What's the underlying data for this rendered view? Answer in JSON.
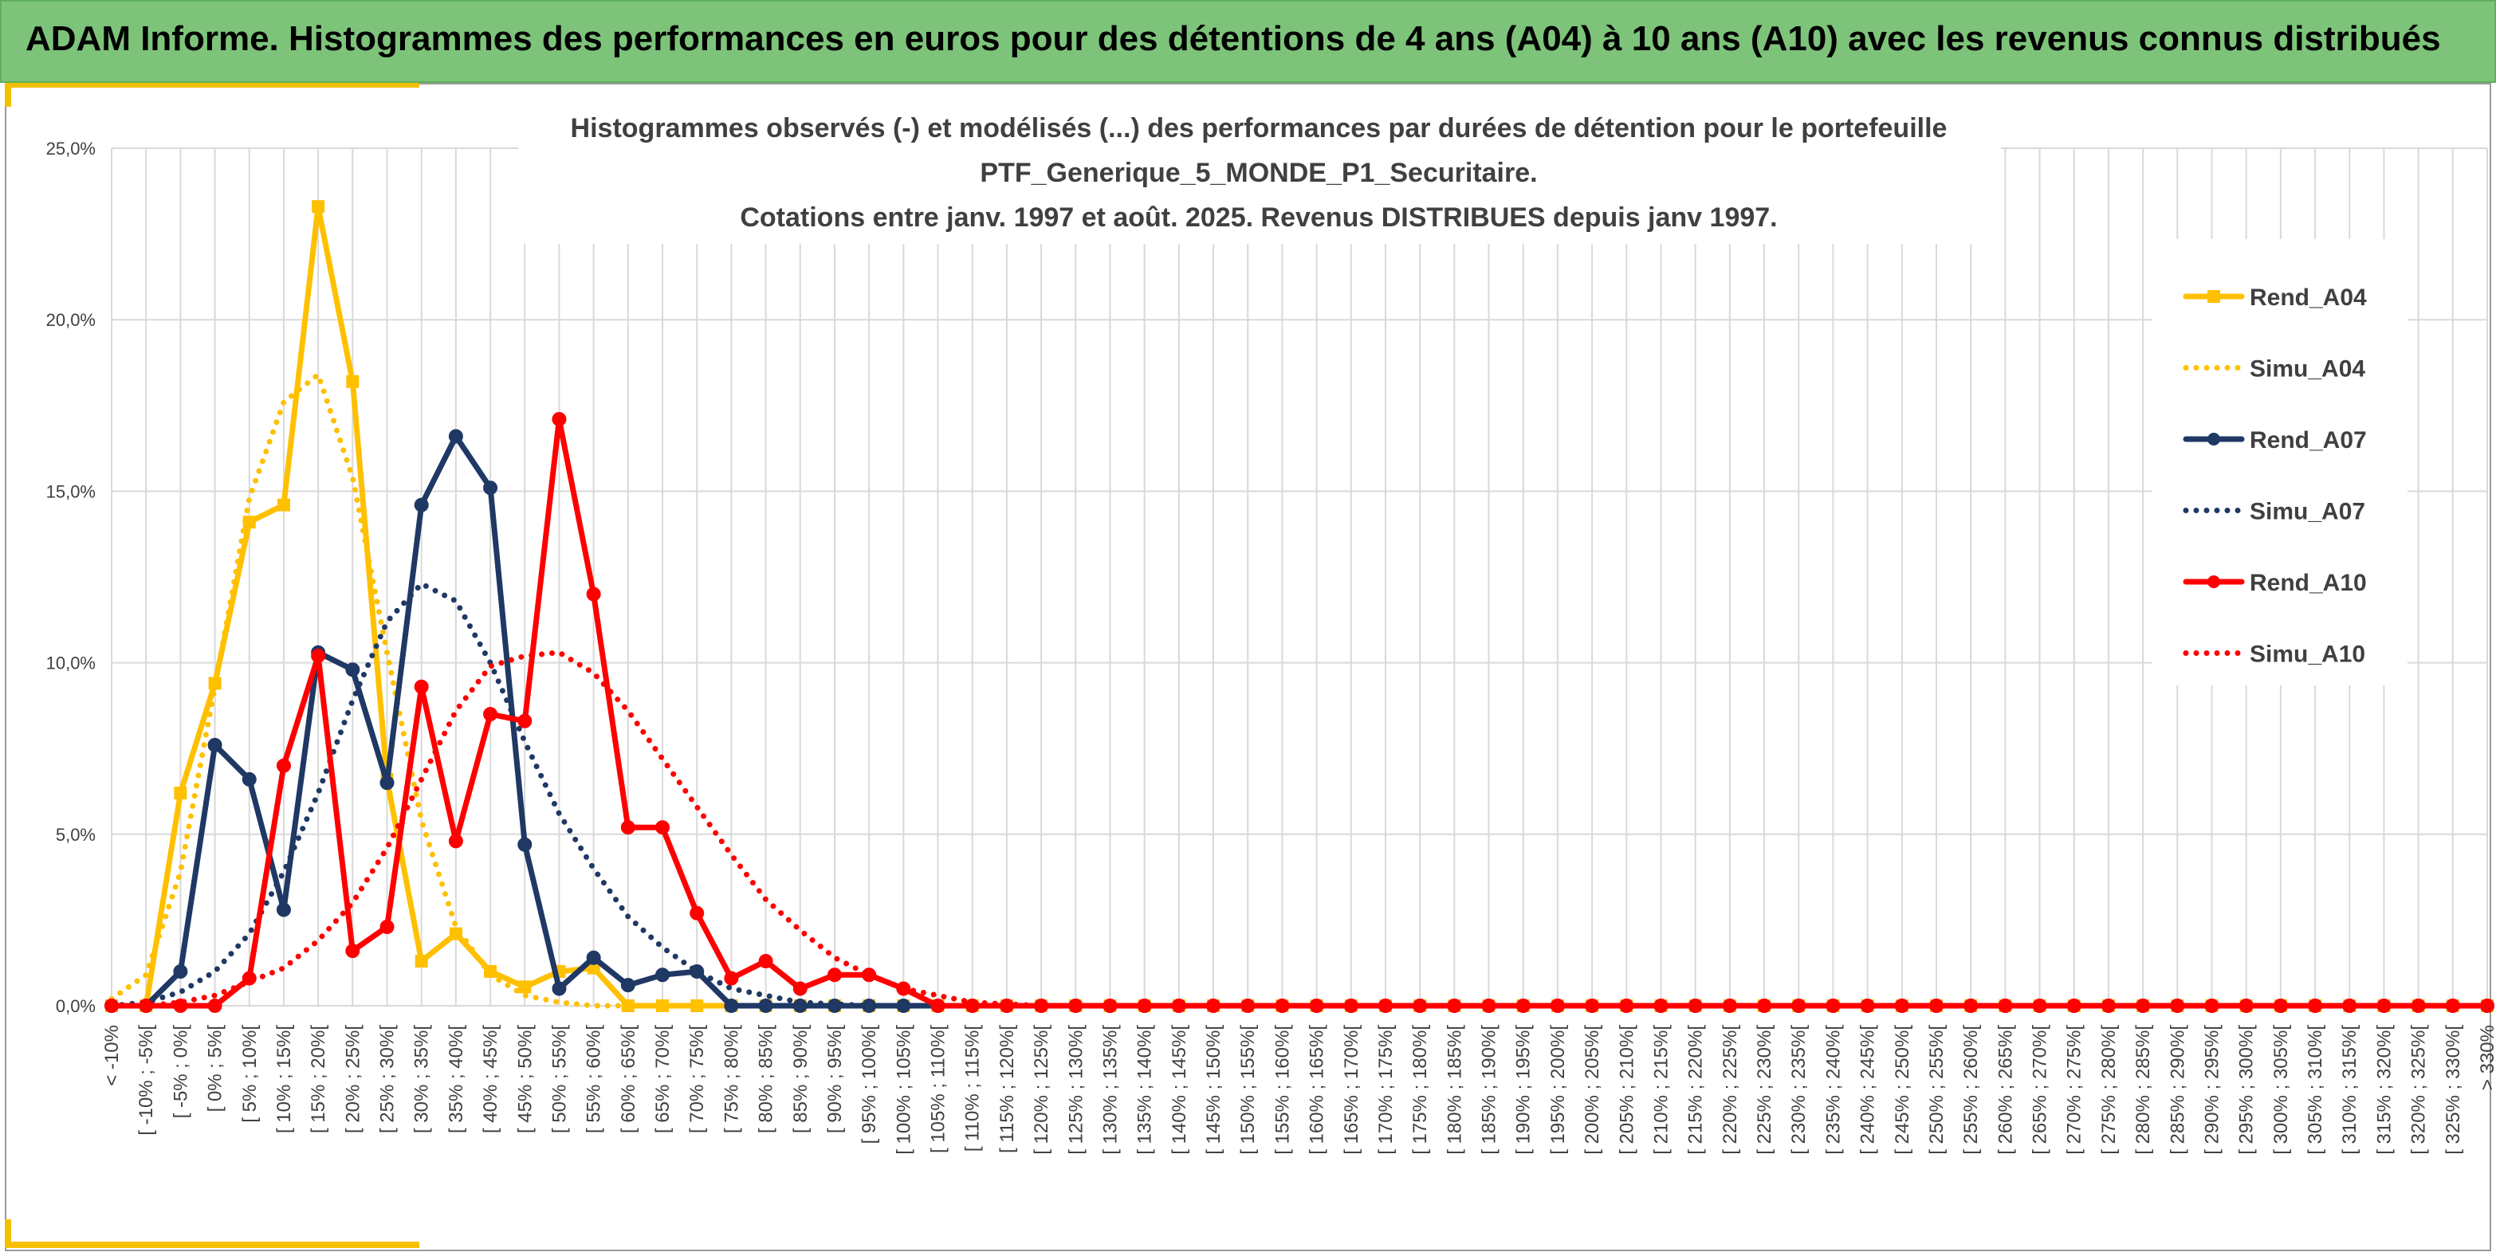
{
  "header": {
    "title": "ADAM Informe. Histogrammes des performances en euros pour des détentions de 4 ans (A04) à 10 ans (A10) avec les revenus connus distribués"
  },
  "colors": {
    "banner": "#7dc47a",
    "accent": "#f4c000",
    "yellow": "#ffc000",
    "navy": "#1f3864",
    "red": "#ff0000",
    "grid": "#d9d9d9"
  },
  "chart_data": {
    "type": "line",
    "title": [
      "Histogrammes observés (-) et modélisés (...) des performances par durées de détention pour le portefeuille",
      "PTF_Generique_5_MONDE_P1_Securitaire.",
      "Cotations entre janv. 1997 et août. 2025. Revenus DISTRIBUES depuis janv 1997."
    ],
    "ylim": [
      0,
      25
    ],
    "yticks": [
      "0,0%",
      "5,0%",
      "10,0%",
      "15,0%",
      "20,0%",
      "25,0%"
    ],
    "grid": true,
    "legend_position": "right",
    "categories": [
      "< -10%",
      "[ -10% ; -5%[",
      "[ -5% ; 0%[",
      "[ 0% ; 5%[",
      "[ 5% ; 10%[",
      "[ 10% ; 15%[",
      "[ 15% ; 20%[",
      "[ 20% ; 25%[",
      "[ 25% ; 30%[",
      "[ 30% ; 35%[",
      "[ 35% ; 40%[",
      "[ 40% ; 45%[",
      "[ 45% ; 50%[",
      "[ 50% ; 55%[",
      "[ 55% ; 60%[",
      "[ 60% ; 65%[",
      "[ 65% ; 70%[",
      "[ 70% ; 75%[",
      "[ 75% ; 80%[",
      "[ 80% ; 85%[",
      "[ 85% ; 90%[",
      "[ 90% ; 95%[",
      "[ 95% ; 100%[",
      "[ 100% ; 105%[",
      "[ 105% ; 110%[",
      "[ 110% ; 115%[",
      "[ 115% ; 120%[",
      "[ 120% ; 125%[",
      "[ 125% ; 130%[",
      "[ 130% ; 135%[",
      "[ 135% ; 140%[",
      "[ 140% ; 145%[",
      "[ 145% ; 150%[",
      "[ 150% ; 155%[",
      "[ 155% ; 160%[",
      "[ 160% ; 165%[",
      "[ 165% ; 170%[",
      "[ 170% ; 175%[",
      "[ 175% ; 180%[",
      "[ 180% ; 185%[",
      "[ 185% ; 190%[",
      "[ 190% ; 195%[",
      "[ 195% ; 200%[",
      "[ 200% ; 205%[",
      "[ 205% ; 210%[",
      "[ 210% ; 215%[",
      "[ 215% ; 220%[",
      "[ 220% ; 225%[",
      "[ 225% ; 230%[",
      "[ 230% ; 235%[",
      "[ 235% ; 240%[",
      "[ 240% ; 245%[",
      "[ 245% ; 250%[",
      "[ 250% ; 255%[",
      "[ 255% ; 260%[",
      "[ 260% ; 265%[",
      "[ 265% ; 270%[",
      "[ 270% ; 275%[",
      "[ 275% ; 280%[",
      "[ 280% ; 285%[",
      "[ 285% ; 290%[",
      "[ 290% ; 295%[",
      "[ 295% ; 300%[",
      "[ 300% ; 305%[",
      "[ 305% ; 310%[",
      "[ 310% ; 315%[",
      "[ 315% ; 320%[",
      "[ 320% ; 325%[",
      "[ 325% ; 330%[",
      "> 330%"
    ],
    "series": [
      {
        "name": "Rend_A04",
        "style": "solid",
        "marker": "square",
        "color": "#ffc000",
        "values": [
          0,
          0,
          6.2,
          9.4,
          14.1,
          14.6,
          23.3,
          18.2,
          6.6,
          1.3,
          2.1,
          1.0,
          0.55,
          1.0,
          1.1,
          0,
          0,
          0,
          0,
          0,
          0,
          0,
          0,
          0,
          0,
          0,
          0,
          0,
          0,
          0,
          0,
          0,
          0,
          0,
          0,
          0,
          0,
          0,
          0,
          0,
          0,
          0,
          0,
          0,
          0,
          0,
          0,
          0,
          0,
          0,
          0,
          0,
          0,
          0,
          0,
          0,
          0,
          0,
          0,
          0,
          0,
          0,
          0,
          0,
          0,
          0,
          0,
          0,
          0,
          0
        ]
      },
      {
        "name": "Simu_A04",
        "style": "dotted",
        "color": "#ffc000",
        "values": [
          0.2,
          0.9,
          3.9,
          9.3,
          14.8,
          17.6,
          18.4,
          15.4,
          10.3,
          5.4,
          2.3,
          0.9,
          0.3,
          0.1,
          0,
          0,
          0,
          0,
          0,
          0,
          0,
          0,
          0,
          0,
          0,
          0,
          0,
          0,
          0,
          0,
          0,
          0,
          0,
          0,
          0,
          0,
          0,
          0,
          0,
          0,
          0,
          0,
          0,
          0,
          0,
          0,
          0,
          0,
          0,
          0,
          0,
          0,
          0,
          0,
          0,
          0,
          0,
          0,
          0,
          0,
          0,
          0,
          0,
          0,
          0,
          0,
          0,
          0,
          0,
          0
        ]
      },
      {
        "name": "Rend_A07",
        "style": "solid",
        "marker": "circle",
        "color": "#1f3864",
        "values": [
          0,
          0,
          1.0,
          7.6,
          6.6,
          2.8,
          10.3,
          9.8,
          6.5,
          14.6,
          16.6,
          15.1,
          4.7,
          0.5,
          1.4,
          0.6,
          0.9,
          1.0,
          0,
          0,
          0,
          0,
          0,
          0,
          0,
          0,
          0,
          0,
          0,
          0,
          0,
          0,
          0,
          0,
          0,
          0,
          0,
          0,
          0,
          0,
          0,
          0,
          0,
          0,
          0,
          0,
          0,
          0,
          0,
          0,
          0,
          0,
          0,
          0,
          0,
          0,
          0,
          0,
          0,
          0,
          0,
          0,
          0,
          0,
          0,
          0,
          0,
          0,
          0,
          0
        ]
      },
      {
        "name": "Simu_A07",
        "style": "dotted",
        "color": "#1f3864",
        "values": [
          0,
          0.1,
          0.4,
          1.0,
          2.1,
          3.9,
          6.2,
          8.9,
          11.2,
          12.3,
          11.8,
          10.0,
          7.7,
          5.6,
          4.0,
          2.6,
          1.7,
          1.0,
          0.5,
          0.3,
          0.1,
          0.05,
          0,
          0,
          0,
          0,
          0,
          0,
          0,
          0,
          0,
          0,
          0,
          0,
          0,
          0,
          0,
          0,
          0,
          0,
          0,
          0,
          0,
          0,
          0,
          0,
          0,
          0,
          0,
          0,
          0,
          0,
          0,
          0,
          0,
          0,
          0,
          0,
          0,
          0,
          0,
          0,
          0,
          0,
          0,
          0,
          0,
          0,
          0,
          0
        ]
      },
      {
        "name": "Rend_A10",
        "style": "solid",
        "marker": "circle",
        "color": "#ff0000",
        "values": [
          0,
          0,
          0,
          0,
          0.8,
          7.0,
          10.2,
          1.6,
          2.3,
          9.3,
          4.8,
          8.5,
          8.3,
          17.1,
          12.0,
          5.2,
          5.2,
          2.7,
          0.8,
          1.3,
          0.5,
          0.9,
          0.9,
          0.5,
          0,
          0,
          0,
          0,
          0,
          0,
          0,
          0,
          0,
          0,
          0,
          0,
          0,
          0,
          0,
          0,
          0,
          0,
          0,
          0,
          0,
          0,
          0,
          0,
          0,
          0,
          0,
          0,
          0,
          0,
          0,
          0,
          0,
          0,
          0,
          0,
          0,
          0,
          0,
          0,
          0,
          0,
          0,
          0,
          0,
          0
        ]
      },
      {
        "name": "Simu_A10",
        "style": "dotted",
        "color": "#ff0000",
        "values": [
          0,
          0,
          0.1,
          0.3,
          0.7,
          1.1,
          1.9,
          3.0,
          4.6,
          6.6,
          8.6,
          9.9,
          10.2,
          10.3,
          9.7,
          8.6,
          7.2,
          5.8,
          4.4,
          3.1,
          2.2,
          1.4,
          0.9,
          0.5,
          0.3,
          0.1,
          0.05,
          0,
          0,
          0,
          0,
          0,
          0,
          0,
          0,
          0,
          0,
          0,
          0,
          0,
          0,
          0,
          0,
          0,
          0,
          0,
          0,
          0,
          0,
          0,
          0,
          0,
          0,
          0,
          0,
          0,
          0,
          0,
          0,
          0,
          0,
          0,
          0,
          0,
          0,
          0,
          0,
          0,
          0,
          0
        ]
      }
    ]
  }
}
